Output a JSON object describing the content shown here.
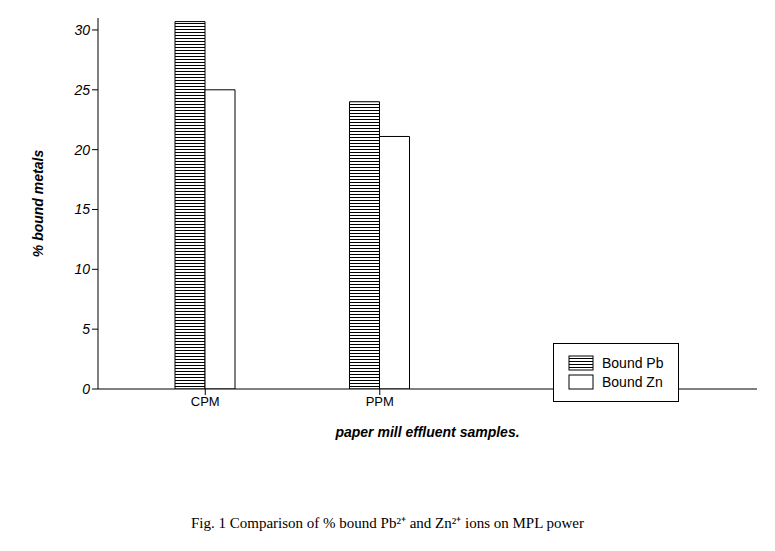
{
  "chart_data": {
    "type": "bar",
    "title": "Fig. 1 Comparison of % bound Pb²⁺ and Zn²⁺ ions on MPL power",
    "x_label": "paper mill effluent samples.",
    "y_label": "% bound metals",
    "categories": [
      "CPM",
      "PPM"
    ],
    "series": [
      {
        "name": "Bound Pb",
        "color": "#000000",
        "values": [
          30.7,
          24
        ]
      },
      {
        "name": "Bound Zn",
        "color": "#ffffff",
        "values": [
          25,
          21.1
        ]
      }
    ],
    "ylim": [
      0,
      31
    ],
    "yticks": [
      0,
      5,
      10,
      15,
      20,
      25,
      30
    ],
    "grid": false,
    "legend": "lower right"
  }
}
